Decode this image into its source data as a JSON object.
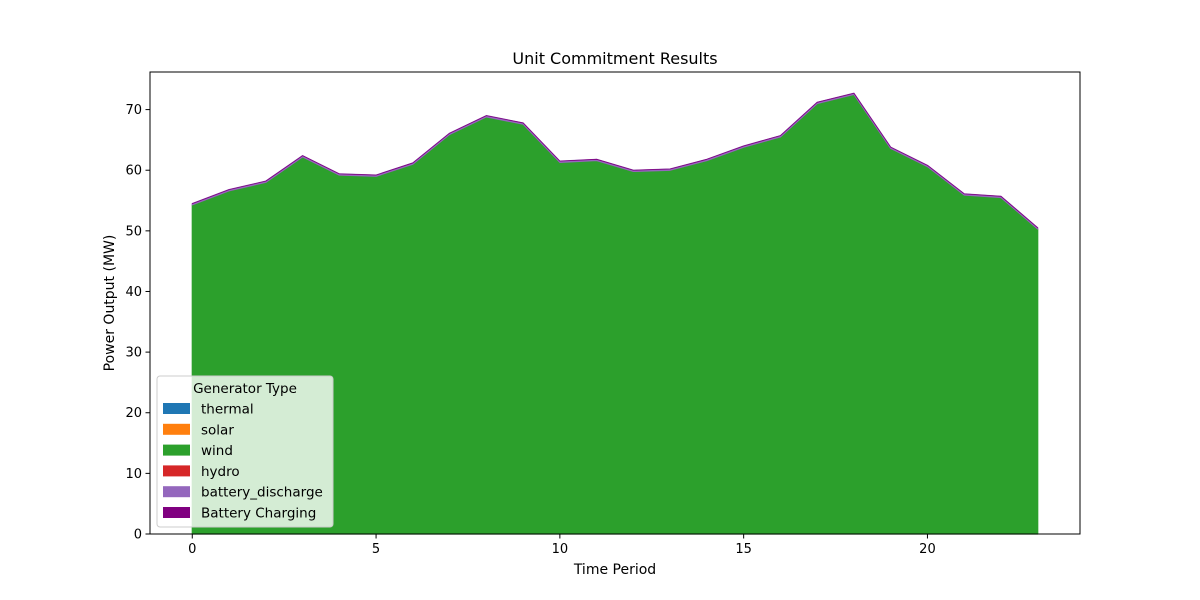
{
  "chart_data": {
    "type": "area",
    "title": "Unit Commitment Results",
    "xlabel": "Time Period",
    "ylabel": "Power Output (MW)",
    "xlim": [
      -1.15,
      24.15
    ],
    "ylim": [
      0,
      76.2
    ],
    "x": [
      0,
      1,
      2,
      3,
      4,
      5,
      6,
      7,
      8,
      9,
      10,
      11,
      12,
      13,
      14,
      15,
      16,
      17,
      18,
      19,
      20,
      21,
      22,
      23
    ],
    "x_ticks": [
      0,
      5,
      10,
      15,
      20
    ],
    "y_ticks": [
      0,
      10,
      20,
      30,
      40,
      50,
      60,
      70
    ],
    "stacked": true,
    "grid": false,
    "legend": {
      "title": "Generator Type",
      "placement": "lower-left"
    },
    "series": [
      {
        "name": "thermal",
        "color": "#1f77b4",
        "values": [
          0,
          0,
          0,
          0,
          0,
          0,
          0,
          0,
          0,
          0,
          0,
          0,
          0,
          0,
          0,
          0,
          0,
          0,
          0,
          0,
          0,
          0,
          0,
          0
        ]
      },
      {
        "name": "solar",
        "color": "#ff7f0e",
        "values": [
          0,
          0,
          0,
          0,
          0,
          0,
          0,
          0,
          0,
          0,
          0,
          0,
          0,
          0,
          0,
          0,
          0,
          0,
          0,
          0,
          0,
          0,
          0,
          0
        ]
      },
      {
        "name": "wind",
        "color": "#2ca02c",
        "values": [
          54.3,
          56.6,
          58.0,
          62.2,
          59.2,
          59.0,
          61.0,
          65.9,
          68.8,
          67.6,
          61.3,
          61.6,
          59.8,
          60.0,
          61.6,
          63.8,
          65.5,
          71.0,
          72.5,
          63.6,
          60.6,
          55.9,
          55.5,
          50.3
        ]
      },
      {
        "name": "hydro",
        "color": "#d62728",
        "values": [
          0,
          0,
          0,
          0,
          0,
          0,
          0,
          0,
          0,
          0,
          0,
          0,
          0,
          0,
          0,
          0,
          0,
          0,
          0,
          0,
          0,
          0,
          0,
          0
        ]
      },
      {
        "name": "battery_discharge",
        "color": "#9467bd",
        "values": [
          0.2,
          0.2,
          0.2,
          0.2,
          0.2,
          0.2,
          0.2,
          0.2,
          0.2,
          0.2,
          0.2,
          0.2,
          0.2,
          0.2,
          0.2,
          0.2,
          0.2,
          0.2,
          0.2,
          0.2,
          0.2,
          0.2,
          0.2,
          0.2
        ]
      },
      {
        "name": "Battery Charging",
        "color": "#800080",
        "values": [
          0,
          0,
          0,
          0,
          0,
          0,
          0,
          0,
          0,
          0,
          0,
          0,
          0,
          0,
          0,
          0,
          0,
          0,
          0,
          0,
          0,
          0,
          0,
          0
        ]
      }
    ]
  }
}
